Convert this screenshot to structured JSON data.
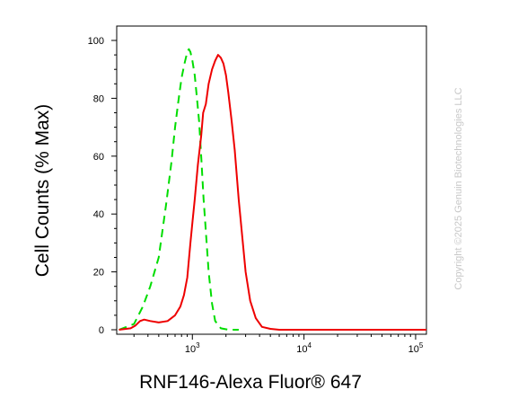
{
  "watermark": "Copyright ©2025 Genuin Biotechnologies LLC",
  "chart_data": {
    "type": "line",
    "subtype": "flow-cytometry-histogram",
    "xlabel": "RNF146-Alexa Fluor® 647",
    "ylabel": "Cell Counts (% Max)",
    "x_scale": "log",
    "xlim": [
      210,
      125000
    ],
    "ylim": [
      0,
      100
    ],
    "y_ticks": [
      0,
      20,
      40,
      60,
      80,
      100
    ],
    "x_ticks": [
      {
        "value": 1000,
        "base": "10",
        "exp": "3"
      },
      {
        "value": 10000,
        "base": "10",
        "exp": "4"
      },
      {
        "value": 100000,
        "base": "10",
        "exp": "5"
      }
    ],
    "series": [
      {
        "style": "dashed",
        "color": "#00dd00",
        "x": [
          220,
          300,
          360,
          420,
          500,
          580,
          650,
          700,
          750,
          800,
          850,
          900,
          930,
          960,
          1000,
          1050,
          1100,
          1150,
          1200,
          1260,
          1300,
          1400,
          1500,
          1600,
          1800,
          2100,
          2600
        ],
        "y": [
          0,
          2,
          8,
          15,
          25,
          43,
          58,
          70,
          79,
          87,
          92,
          96,
          97,
          96,
          93,
          88,
          80,
          72,
          60,
          45,
          38,
          20,
          9,
          3,
          0.5,
          0,
          0
        ]
      },
      {
        "style": "solid",
        "color": "#ee0000",
        "x": [
          220,
          280,
          310,
          340,
          370,
          420,
          500,
          600,
          700,
          780,
          840,
          900,
          960,
          1000,
          1050,
          1120,
          1200,
          1250,
          1320,
          1400,
          1500,
          1600,
          1700,
          1800,
          1900,
          2000,
          2100,
          2250,
          2400,
          2600,
          2800,
          3000,
          3300,
          3700,
          4200,
          5000,
          6000,
          8000,
          20000,
          60000,
          125000
        ],
        "y": [
          0,
          0.5,
          1.5,
          3,
          3.5,
          3,
          2.5,
          3,
          5,
          8,
          12,
          18,
          30,
          37,
          45,
          57,
          67,
          75,
          78,
          85,
          90,
          93,
          95,
          94,
          92,
          88,
          82,
          72,
          62,
          45,
          32,
          20,
          10,
          4,
          1,
          0.3,
          0,
          0,
          0,
          0,
          0
        ]
      }
    ]
  }
}
